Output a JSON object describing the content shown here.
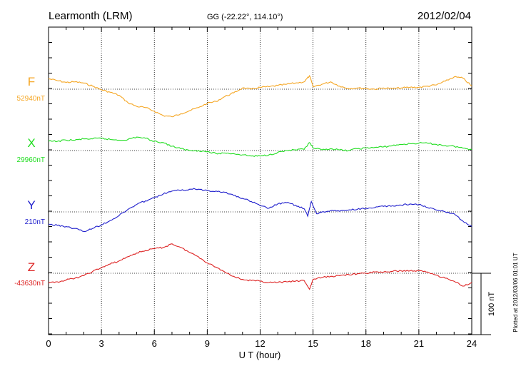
{
  "header": {
    "station": "Learmonth (LRM)",
    "coords": "GG (-22.22°, 114.10°)",
    "date": "2012/02/04"
  },
  "side_note": "Plotted at 2012/03/06 01:01  UT",
  "scale_label": "100 nT",
  "chart_data": {
    "type": "line",
    "xlabel": "U T (hour)",
    "xlim": [
      0,
      24
    ],
    "x_ticks": [
      "0",
      "3",
      "6",
      "9",
      "12",
      "15",
      "18",
      "21",
      "24"
    ],
    "y_unit": "nT",
    "scale_bar_nT": 100,
    "grid": true,
    "series": [
      {
        "name": "F",
        "baseline_label": "52940nT",
        "color": "#f5a623",
        "x": [
          0,
          0.5,
          1,
          1.5,
          2,
          2.5,
          3,
          3.5,
          4,
          4.5,
          5,
          5.5,
          6,
          6.5,
          7,
          7.5,
          8,
          8.5,
          9,
          9.5,
          10,
          10.5,
          11,
          11.5,
          12,
          12.5,
          13,
          13.5,
          14,
          14.5,
          14.8,
          15,
          15.5,
          16,
          16.5,
          17,
          17.5,
          18,
          18.5,
          19,
          19.5,
          20,
          20.5,
          21,
          21.5,
          22,
          22.5,
          23,
          23.5,
          24
        ],
        "y": [
          17,
          14,
          11,
          12,
          10,
          5,
          -1,
          -5,
          -10,
          -22,
          -28,
          -30,
          -36,
          -43,
          -45,
          -40,
          -35,
          -30,
          -23,
          -20,
          -12,
          -6,
          2,
          0,
          3,
          4,
          6,
          8,
          10,
          12,
          22,
          4,
          8,
          12,
          5,
          1,
          2,
          1,
          0,
          2,
          1,
          2,
          3,
          3,
          5,
          7,
          13,
          20,
          18,
          5
        ]
      },
      {
        "name": "X",
        "baseline_label": "29960nT",
        "color": "#22dd22",
        "x": [
          0,
          0.5,
          1,
          1.5,
          2,
          2.5,
          3,
          3.5,
          4,
          4.5,
          5,
          5.5,
          6,
          6.5,
          7,
          7.5,
          8,
          8.5,
          9,
          9.5,
          10,
          10.5,
          11,
          11.5,
          12,
          12.5,
          13,
          13.5,
          14,
          14.5,
          14.8,
          15,
          15.5,
          16,
          16.5,
          17,
          17.5,
          18,
          18.5,
          19,
          19.5,
          20,
          20.5,
          21,
          21.5,
          22,
          22.5,
          23,
          23.5,
          24
        ],
        "y": [
          15,
          15,
          17,
          17,
          19,
          19,
          20,
          18,
          17,
          18,
          22,
          20,
          15,
          13,
          7,
          3,
          0,
          0,
          -2,
          -5,
          -4,
          -5,
          -7,
          -9,
          -9,
          -7,
          -3,
          0,
          1,
          2,
          13,
          4,
          1,
          3,
          1,
          0,
          3,
          4,
          5,
          6,
          8,
          10,
          11,
          12,
          12,
          10,
          8,
          7,
          4,
          2
        ]
      },
      {
        "name": "Y",
        "baseline_label": "210nT",
        "color": "#1e1ecc",
        "x": [
          0,
          0.5,
          1,
          1.5,
          2,
          2.5,
          3,
          3.5,
          4,
          4.5,
          5,
          5.5,
          6,
          6.5,
          7,
          7.5,
          8,
          8.5,
          9,
          9.5,
          10,
          10.5,
          11,
          11.5,
          12,
          12.5,
          13,
          13.5,
          14,
          14.5,
          14.7,
          14.9,
          15.2,
          15.5,
          16,
          16.5,
          17,
          17.5,
          18,
          18.5,
          19,
          19.5,
          20,
          20.5,
          21,
          21.5,
          22,
          22.5,
          23,
          23.5,
          24
        ],
        "y": [
          -20,
          -22,
          -24,
          -27,
          -32,
          -27,
          -21,
          -14,
          -6,
          4,
          12,
          18,
          23,
          29,
          34,
          35,
          37,
          37,
          35,
          34,
          32,
          27,
          22,
          17,
          10,
          6,
          13,
          15,
          11,
          5,
          -7,
          17,
          -3,
          0,
          2,
          1,
          3,
          4,
          6,
          7,
          9,
          10,
          11,
          13,
          12,
          7,
          3,
          0,
          -3,
          -15,
          -24
        ]
      },
      {
        "name": "Z",
        "baseline_label": "-43630nT",
        "color": "#dd2222",
        "x": [
          0,
          0.5,
          1,
          1.5,
          2,
          2.5,
          3,
          3.5,
          4,
          4.5,
          5,
          5.5,
          6,
          6.5,
          7,
          7.5,
          8,
          8.5,
          9,
          9.5,
          10,
          10.5,
          11,
          11.5,
          12,
          12.5,
          13,
          13.5,
          14,
          14.5,
          14.8,
          15,
          15.5,
          16,
          16.5,
          17,
          17.5,
          18,
          18.5,
          19,
          19.5,
          20,
          20.5,
          21,
          21.5,
          22,
          22.5,
          23,
          23.5,
          24
        ],
        "y": [
          -16,
          -14,
          -11,
          -8,
          -4,
          3,
          9,
          15,
          20,
          27,
          33,
          37,
          40,
          42,
          48,
          42,
          34,
          27,
          17,
          10,
          2,
          -5,
          -10,
          -12,
          -13,
          -15,
          -15,
          -14,
          -13,
          -12,
          -26,
          -10,
          -7,
          -5,
          -4,
          -2,
          -1,
          0,
          2,
          2,
          3,
          4,
          4,
          4,
          2,
          -3,
          -8,
          -13,
          -21,
          -15
        ]
      }
    ]
  }
}
